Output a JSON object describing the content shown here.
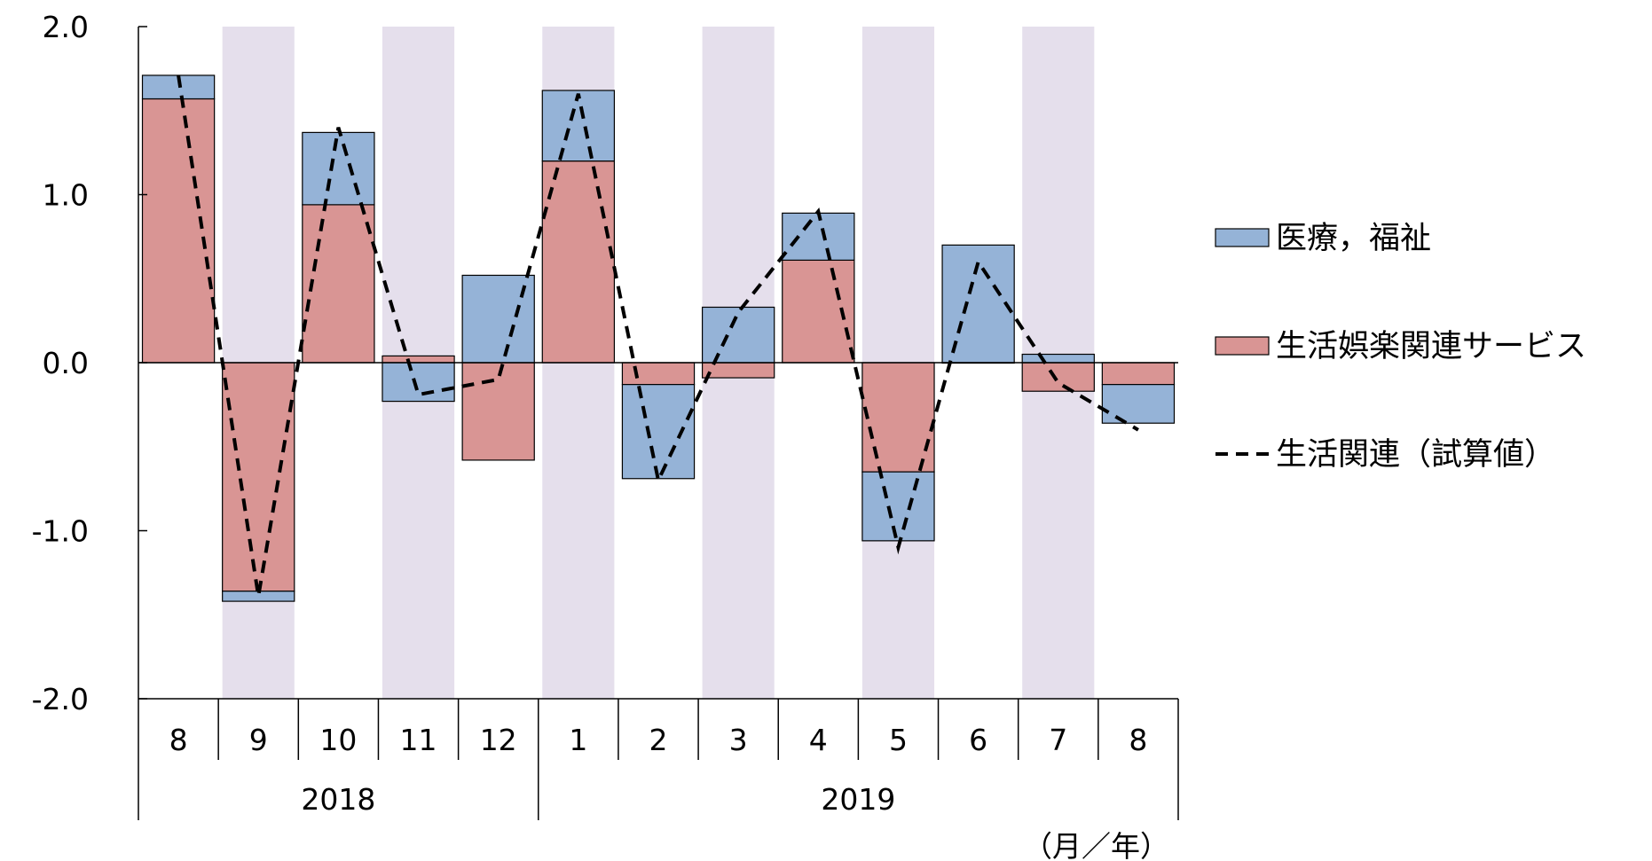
{
  "chart_data": {
    "type": "bar",
    "stacked": true,
    "categories": [
      "8",
      "9",
      "10",
      "11",
      "12",
      "1",
      "2",
      "3",
      "4",
      "5",
      "6",
      "7",
      "8"
    ],
    "years": [
      {
        "label": "2018",
        "start": 0,
        "end": 4
      },
      {
        "label": "2019",
        "start": 5,
        "end": 12
      }
    ],
    "unit_label": "（月／年）",
    "ylim": [
      -2.0,
      2.0
    ],
    "yticks": [
      2.0,
      1.0,
      0.0,
      -1.0,
      -2.0
    ],
    "ytick_labels": [
      "2.0",
      "1.0",
      "0.0",
      "-1.0",
      "-2.0"
    ],
    "shaded_categories": [
      1,
      3,
      5,
      7,
      9,
      11
    ],
    "series": [
      {
        "name": "生活娯楽関連サービス",
        "kind": "bar",
        "color": "#d99594",
        "values": [
          1.57,
          -1.36,
          0.94,
          0.04,
          -0.58,
          1.2,
          -0.13,
          -0.09,
          0.61,
          -0.65,
          0.0,
          -0.17,
          -0.13
        ]
      },
      {
        "name": "医療，福祉",
        "kind": "bar",
        "color": "#95b3d7",
        "values": [
          0.14,
          -0.06,
          0.43,
          -0.23,
          0.52,
          0.42,
          -0.56,
          0.33,
          0.28,
          -0.41,
          0.7,
          0.05,
          -0.23
        ]
      },
      {
        "name": "生活関連（試算値）",
        "kind": "line",
        "style": "dashed",
        "color": "#000000",
        "values": [
          1.71,
          -1.39,
          1.4,
          -0.19,
          -0.1,
          1.6,
          -0.7,
          0.3,
          0.9,
          -1.1,
          0.6,
          -0.12,
          -0.4
        ]
      }
    ],
    "legend": {
      "placement": "right",
      "items": [
        {
          "label": "医療，福祉",
          "swatch": "box",
          "color": "#95b3d7"
        },
        {
          "label": "生活娯楽関連サービス",
          "swatch": "box",
          "color": "#d99594"
        },
        {
          "label": "生活関連（試算値）",
          "swatch": "dash",
          "color": "#000000"
        }
      ]
    },
    "band_color": "#e5dfec",
    "grid": false
  }
}
